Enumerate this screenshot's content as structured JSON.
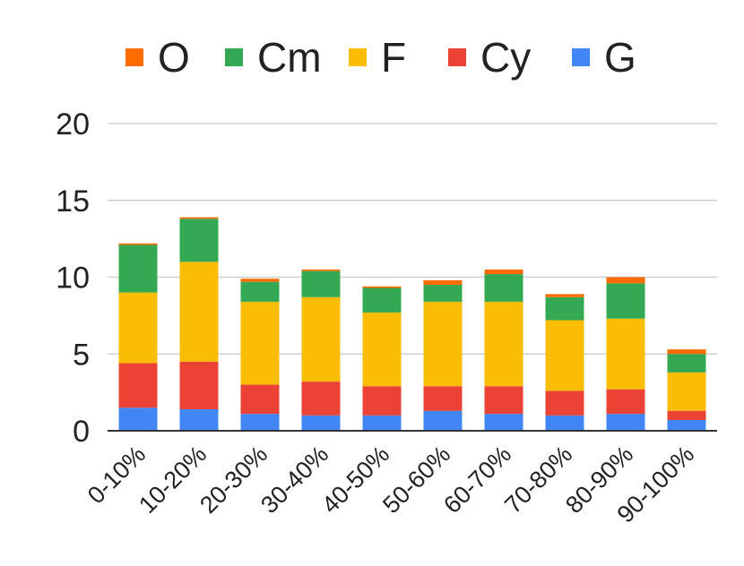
{
  "chart_data": {
    "type": "bar",
    "stacked": true,
    "title": "",
    "xlabel": "",
    "ylabel": "",
    "ylim": [
      0,
      20
    ],
    "yticks": [
      0,
      5,
      10,
      15,
      20
    ],
    "grid": true,
    "legend_position": "top",
    "categories": [
      "0-10%",
      "10-20%",
      "20-30%",
      "30-40%",
      "40-50%",
      "50-60%",
      "60-70%",
      "70-80%",
      "80-90%",
      "90-100%"
    ],
    "series": [
      {
        "name": "G",
        "color": "#4285F4",
        "values": [
          1.5,
          1.4,
          1.1,
          1.0,
          1.0,
          1.3,
          1.1,
          1.0,
          1.1,
          0.7
        ]
      },
      {
        "name": "Cy",
        "color": "#EA4335",
        "values": [
          2.9,
          3.1,
          1.9,
          2.2,
          1.9,
          1.6,
          1.8,
          1.6,
          1.6,
          0.6
        ]
      },
      {
        "name": "F",
        "color": "#FBBC04",
        "values": [
          4.6,
          6.5,
          5.4,
          5.5,
          4.8,
          5.5,
          5.5,
          4.6,
          4.6,
          2.5
        ]
      },
      {
        "name": "Cm",
        "color": "#34A853",
        "values": [
          3.1,
          2.8,
          1.3,
          1.7,
          1.6,
          1.1,
          1.8,
          1.5,
          2.3,
          1.2
        ]
      },
      {
        "name": "O",
        "color": "#FF6D01",
        "values": [
          0.1,
          0.1,
          0.2,
          0.1,
          0.1,
          0.3,
          0.3,
          0.2,
          0.4,
          0.3
        ]
      }
    ],
    "legend_order": [
      "O",
      "Cm",
      "F",
      "Cy",
      "G"
    ]
  }
}
